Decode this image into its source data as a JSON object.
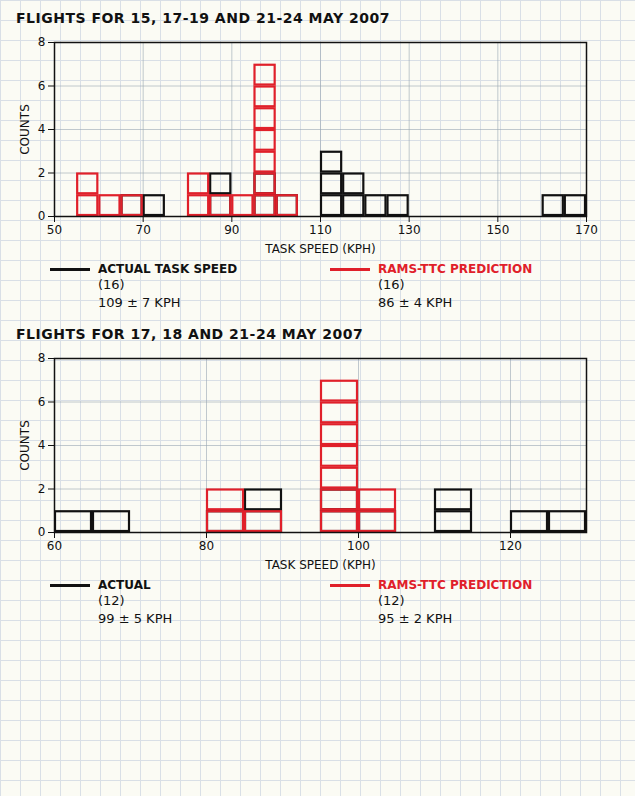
{
  "chart_data": [
    {
      "type": "histogram",
      "title": "FLIGHTS FOR 15, 17-19 AND 21-24 MAY 2007",
      "x_label": "TASK SPEED (KPH)",
      "y_label": "COUNTS",
      "bins": [
        50,
        55,
        60,
        65,
        70,
        75,
        80,
        85,
        90,
        95,
        100,
        105,
        110,
        115,
        120,
        125,
        130,
        135,
        140,
        145,
        150,
        155,
        160,
        165,
        170
      ],
      "series": [
        {
          "name": "ACTUAL TASK SPEED",
          "color": "#111111",
          "values": [
            0,
            0,
            0,
            1,
            1,
            0,
            0,
            2,
            0,
            2,
            1,
            0,
            3,
            2,
            1,
            1,
            0,
            0,
            0,
            0,
            0,
            0,
            1,
            1
          ],
          "annotations": [
            "(16)",
            "109 ± 7 KPH"
          ]
        },
        {
          "name": "RAMS-TTC PREDICTION",
          "color": "#e0202a",
          "values": [
            0,
            2,
            1,
            1,
            0,
            0,
            2,
            1,
            1,
            7,
            1,
            0,
            0,
            0,
            0,
            0,
            0,
            0,
            0,
            0,
            0,
            0,
            0,
            0
          ],
          "annotations": [
            "(16)",
            "86 ± 4 KPH"
          ]
        }
      ],
      "xlim": [
        50,
        170
      ],
      "xticks": [
        50,
        70,
        90,
        110,
        130,
        150,
        170
      ],
      "ylim": [
        0,
        8
      ],
      "yticks": [
        0,
        2,
        4,
        6,
        8
      ],
      "grid": true,
      "legend": "bottom"
    },
    {
      "type": "histogram",
      "title": "FLIGHTS FOR 17, 18 AND 21-24 MAY 2007",
      "x_label": "TASK SPEED (KPH)",
      "y_label": "COUNTS",
      "bins": [
        60,
        65,
        70,
        75,
        80,
        85,
        90,
        95,
        100,
        105,
        110,
        115,
        120,
        125,
        130
      ],
      "series": [
        {
          "name": "ACTUAL",
          "color": "#111111",
          "values": [
            1,
            1,
            0,
            0,
            1,
            2,
            0,
            2,
            1,
            0,
            2,
            0,
            1,
            1
          ],
          "annotations": [
            "(12)",
            "99 ± 5 KPH"
          ]
        },
        {
          "name": "RAMS-TTC PREDICTION",
          "color": "#e0202a",
          "values": [
            0,
            0,
            0,
            0,
            2,
            1,
            0,
            7,
            2,
            0,
            0,
            0,
            0,
            0
          ],
          "annotations": [
            "(12)",
            "95 ± 2 KPH"
          ]
        }
      ],
      "xlim": [
        60,
        130
      ],
      "xticks": [
        60,
        80,
        100,
        120
      ],
      "ylim": [
        0,
        8
      ],
      "yticks": [
        0,
        2,
        4,
        6,
        8
      ],
      "grid": true,
      "legend": "bottom"
    }
  ]
}
